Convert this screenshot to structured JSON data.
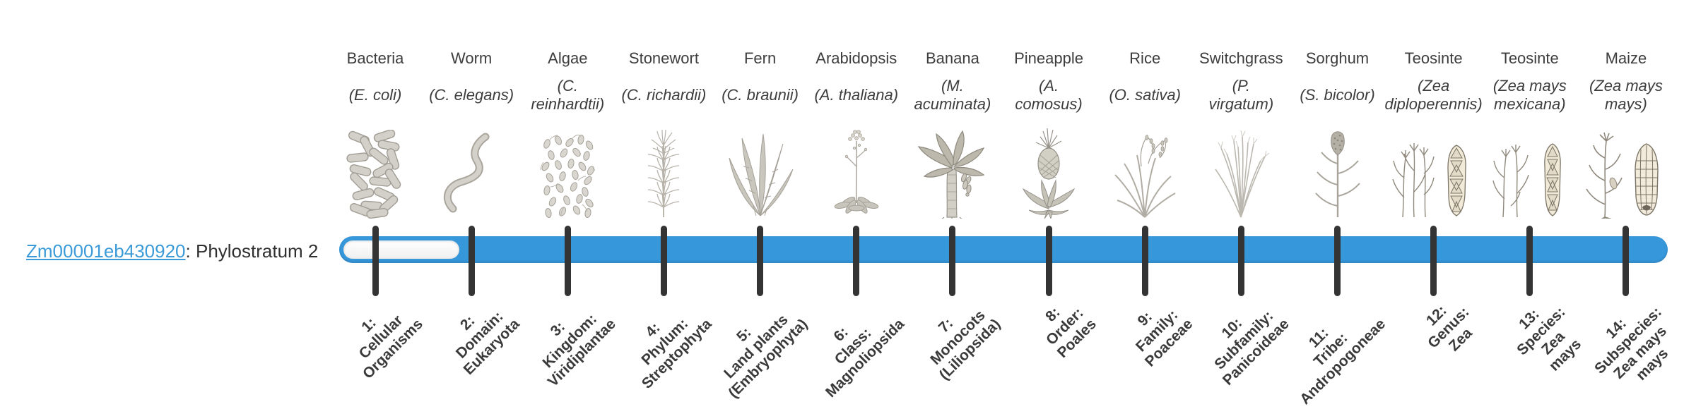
{
  "gene": {
    "id": "Zm00001eb430920",
    "label_suffix": ": Phylostratum 2"
  },
  "timeline": {
    "bar_color": "#3697db",
    "tick_color": "#343434",
    "link_color": "#3b9bd8",
    "filled_from_stratum": 2
  },
  "organisms": [
    {
      "name": "Bacteria",
      "scientific_name": "(E. coli)",
      "scientific_lines": [
        "(E. coli)"
      ],
      "icon": "bacteria-illustration"
    },
    {
      "name": "Worm",
      "scientific_name": "(C. elegans)",
      "scientific_lines": [
        "(C. elegans)"
      ],
      "icon": "worm-illustration"
    },
    {
      "name": "Algae",
      "scientific_name": "(C. reinhardtii)",
      "scientific_lines": [
        "(C.",
        "reinhardtii)"
      ],
      "icon": "algae-illustration"
    },
    {
      "name": "Stonewort",
      "scientific_name": "(C. richardii)",
      "scientific_lines": [
        "(C. richardii)"
      ],
      "icon": "stonewort-illustration"
    },
    {
      "name": "Fern",
      "scientific_name": "(C. braunii)",
      "scientific_lines": [
        "(C. braunii)"
      ],
      "icon": "fern-illustration"
    },
    {
      "name": "Arabidopsis",
      "scientific_name": "(A. thaliana)",
      "scientific_lines": [
        "(A. thaliana)"
      ],
      "icon": "arabidopsis-illustration"
    },
    {
      "name": "Banana",
      "scientific_name": "(M. acuminata)",
      "scientific_lines": [
        "(M.",
        "acuminata)"
      ],
      "icon": "banana-illustration"
    },
    {
      "name": "Pineapple",
      "scientific_name": "(A. comosus)",
      "scientific_lines": [
        "(A.",
        "comosus)"
      ],
      "icon": "pineapple-illustration"
    },
    {
      "name": "Rice",
      "scientific_name": "(O. sativa)",
      "scientific_lines": [
        "(O. sativa)"
      ],
      "icon": "rice-illustration"
    },
    {
      "name": "Switchgrass",
      "scientific_name": "(P. virgatum)",
      "scientific_lines": [
        "(P.",
        "virgatum)"
      ],
      "icon": "switchgrass-illustration"
    },
    {
      "name": "Sorghum",
      "scientific_name": "(S. bicolor)",
      "scientific_lines": [
        "(S. bicolor)"
      ],
      "icon": "sorghum-illustration"
    },
    {
      "name": "Teosinte",
      "scientific_name": "(Zea diploperennis)",
      "scientific_lines": [
        "(Zea",
        "diploperennis)"
      ],
      "icon": "teosinte-diploperennis-illustration"
    },
    {
      "name": "Teosinte",
      "scientific_name": "(Zea mays mexicana)",
      "scientific_lines": [
        "(Zea mays",
        "mexicana)"
      ],
      "icon": "teosinte-mexicana-illustration"
    },
    {
      "name": "Maize",
      "scientific_name": "(Zea mays mays)",
      "scientific_lines": [
        "(Zea mays",
        "mays)"
      ],
      "icon": "maize-illustration"
    }
  ],
  "phylostrata": [
    {
      "number": 1,
      "label": "1: Cellular Organisms",
      "lines": [
        "1:",
        "Cellular",
        "Organisms"
      ]
    },
    {
      "number": 2,
      "label": "2: Domain: Eukaryota",
      "lines": [
        "2:",
        "Domain:",
        "Eukaryota"
      ]
    },
    {
      "number": 3,
      "label": "3: Kingdom: Viridiplantae",
      "lines": [
        "3:",
        "Kingdom:",
        "Viridiplantae"
      ]
    },
    {
      "number": 4,
      "label": "4: Phylum: Streptophyta",
      "lines": [
        "4:",
        "Phylum:",
        "Streptophyta"
      ]
    },
    {
      "number": 5,
      "label": "5: Land plants (Embryophyta)",
      "lines": [
        "5:",
        "Land plants",
        "(Embryophyta)"
      ]
    },
    {
      "number": 6,
      "label": "6: Class: Magnoliopsida",
      "lines": [
        "6:",
        "Class:",
        "Magnoliopsida"
      ]
    },
    {
      "number": 7,
      "label": "7: Monocots (Liliopsida)",
      "lines": [
        "7:",
        "Monocots",
        "(Liliopsida)"
      ]
    },
    {
      "number": 8,
      "label": "8: Order: Poales",
      "lines": [
        "8:",
        "Order:",
        "Poales"
      ]
    },
    {
      "number": 9,
      "label": "9: Family: Poaceae",
      "lines": [
        "9:",
        "Family:",
        "Poaceae"
      ]
    },
    {
      "number": 10,
      "label": "10: Subfamily: Panicoideae",
      "lines": [
        "10:",
        "Subfamily:",
        "Panicoideae"
      ]
    },
    {
      "number": 11,
      "label": "11: Tribe: Andropogoneae",
      "lines": [
        "11:",
        "Tribe:",
        "Andropogoneae"
      ]
    },
    {
      "number": 12,
      "label": "12: Genus: Zea",
      "lines": [
        "12:",
        "Genus:",
        "Zea"
      ]
    },
    {
      "number": 13,
      "label": "13: Species: Zea mays",
      "lines": [
        "13:",
        "Species:",
        "Zea",
        "mays"
      ]
    },
    {
      "number": 14,
      "label": "14: Subspecies: Zea mays mays",
      "lines": [
        "14:",
        "Subspecies:",
        "Zea mays",
        "mays"
      ]
    }
  ],
  "chart_data": {
    "type": "bar",
    "orientation": "horizontal",
    "title": "Zm00001eb430920: Phylostratum 2",
    "categories": [
      "1: Cellular Organisms",
      "2: Domain: Eukaryota",
      "3: Kingdom: Viridiplantae",
      "4: Phylum: Streptophyta",
      "5: Land plants (Embryophyta)",
      "6: Class: Magnoliopsida",
      "7: Monocots (Liliopsida)",
      "8: Order: Poales",
      "9: Family: Poaceae",
      "10: Subfamily: Panicoideae",
      "11: Tribe: Andropogoneae",
      "12: Genus: Zea",
      "13: Species: Zea mays",
      "14: Subspecies: Zea mays mays"
    ],
    "category_organisms": [
      "Bacteria (E. coli)",
      "Worm (C. elegans)",
      "Algae (C. reinhardtii)",
      "Stonewort (C. richardii)",
      "Fern (C. braunii)",
      "Arabidopsis (A. thaliana)",
      "Banana (M. acuminata)",
      "Pineapple (A. comosus)",
      "Rice (O. sativa)",
      "Switchgrass (P. virgatum)",
      "Sorghum (S. bicolor)",
      "Teosinte (Zea diploperennis)",
      "Teosinte (Zea mays mexicana)",
      "Maize (Zea mays mays)"
    ],
    "filled": [
      false,
      true,
      true,
      true,
      true,
      true,
      true,
      true,
      true,
      true,
      true,
      true,
      true,
      true
    ],
    "legend_position": "none",
    "grid": false
  }
}
